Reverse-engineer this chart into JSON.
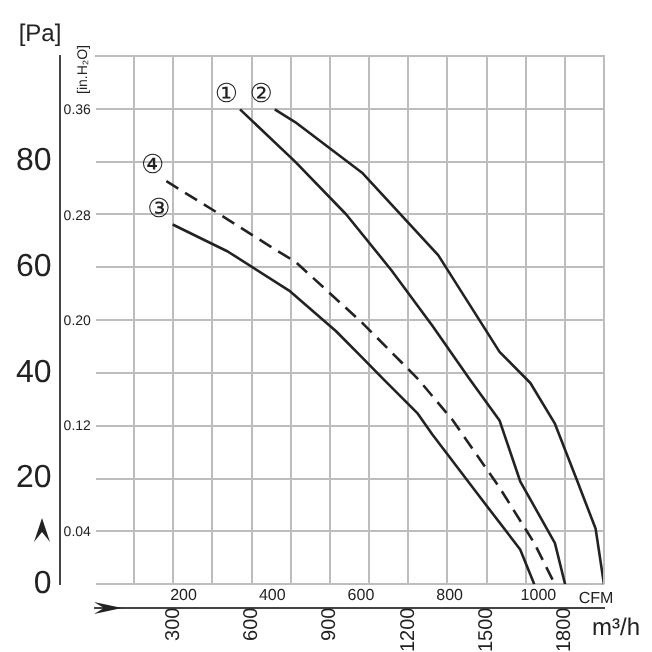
{
  "chart_data": {
    "type": "line",
    "ylabel": "[Pa]",
    "y2label": "[in.H₂O]",
    "xlabel": "m³/h",
    "x2label": "CFM",
    "xlim": [
      0,
      1950
    ],
    "xticks": [
      {
        "value": 150,
        "label": null
      },
      300,
      {
        "value": 450,
        "label": null
      },
      600,
      {
        "value": 750,
        "label": null
      },
      900,
      {
        "value": 1050,
        "label": null
      },
      1200,
      {
        "value": 1350,
        "label": null
      },
      1500,
      {
        "value": 1650,
        "label": null
      },
      1800,
      {
        "value": 1950,
        "label": null
      }
    ],
    "x2lim": [
      0,
      1148
    ],
    "x2ticks": [
      200,
      400,
      600,
      800,
      1000
    ],
    "ylim": [
      0,
      100
    ],
    "yticks": [
      0,
      {
        "value": 10,
        "label": null
      },
      20,
      {
        "value": 30,
        "label": null
      },
      40,
      {
        "value": 50,
        "label": null
      },
      60,
      {
        "value": 70,
        "label": null
      },
      80,
      {
        "value": 90,
        "label": null
      },
      {
        "value": 100,
        "label": null
      }
    ],
    "y2lim": [
      0,
      0.4015
    ],
    "y2ticks": [
      0.04,
      0.12,
      {
        "value": 0.2,
        "label": "0.20"
      },
      0.28,
      0.36
    ],
    "grid": true,
    "legend": false,
    "marker": "none",
    "series": [
      {
        "name": "①",
        "color": "#222222",
        "line_style": "solid",
        "x": [
          556,
          767,
          963,
          1135,
          1292,
          1433,
          1550,
          1629,
          1762,
          1801
        ],
        "values": [
          89.9,
          80,
          70,
          59.5,
          49,
          39,
          31,
          19.5,
          7.8,
          0
        ]
      },
      {
        "name": "②",
        "color": "#222222",
        "line_style": "solid",
        "x": [
          689,
          767,
          1026,
          1315,
          1550,
          1668,
          1762,
          1848,
          1918,
          1950
        ],
        "values": [
          89.9,
          87.5,
          77.8,
          62.3,
          44,
          38.1,
          30.4,
          19.5,
          10.5,
          0
        ]
      },
      {
        "name": "③",
        "color": "#222222",
        "line_style": "solid",
        "x": [
          298,
          509,
          744,
          924,
          1026,
          1104,
          1237,
          1292,
          1472,
          1629,
          1683
        ],
        "values": [
          68.1,
          63,
          55.6,
          47.9,
          42.8,
          38.9,
          32.3,
          28.4,
          16.7,
          6.6,
          0
        ]
      },
      {
        "name": "④",
        "color": "#222222",
        "line_style": "dashed",
        "x": [
          274,
          454,
          689,
          767,
          1026,
          1237,
          1370,
          1550,
          1683,
          1762
        ],
        "values": [
          76.3,
          70.8,
          63.4,
          61.1,
          49.4,
          38.9,
          31.1,
          18.3,
          7.8,
          0
        ]
      }
    ]
  }
}
